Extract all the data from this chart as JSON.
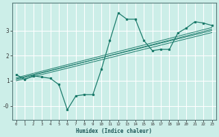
{
  "xlabel": "Humidex (Indice chaleur)",
  "background_color": "#cceee8",
  "grid_color": "#ffffff",
  "line_color": "#1a7a6a",
  "xlim": [
    -0.5,
    23.5
  ],
  "ylim": [
    -0.55,
    4.1
  ],
  "xticks": [
    0,
    1,
    2,
    3,
    4,
    5,
    6,
    7,
    8,
    9,
    10,
    11,
    12,
    13,
    14,
    15,
    16,
    17,
    18,
    19,
    20,
    21,
    22,
    23
  ],
  "yticks": [
    0,
    1,
    2,
    3
  ],
  "ytick_labels": [
    "-0",
    "1",
    "2",
    "3"
  ],
  "scatter_x": [
    0,
    1,
    2,
    3,
    4,
    5,
    6,
    7,
    8,
    9,
    10,
    11,
    12,
    13,
    14,
    15,
    16,
    17,
    18,
    19,
    20,
    21,
    22,
    23
  ],
  "scatter_y": [
    1.25,
    1.05,
    1.2,
    1.15,
    1.1,
    0.85,
    -0.15,
    0.4,
    0.45,
    0.45,
    1.45,
    2.6,
    3.7,
    3.45,
    3.45,
    2.6,
    2.2,
    2.25,
    2.25,
    2.9,
    3.1,
    3.35,
    3.3,
    3.2
  ],
  "reg_lines": [
    {
      "x": [
        0,
        23
      ],
      "y": [
        1.05,
        3.05
      ]
    },
    {
      "x": [
        0,
        23
      ],
      "y": [
        1.0,
        2.92
      ]
    },
    {
      "x": [
        0,
        23
      ],
      "y": [
        1.12,
        3.12
      ]
    },
    {
      "x": [
        0,
        23
      ],
      "y": [
        1.08,
        3.0
      ]
    }
  ]
}
